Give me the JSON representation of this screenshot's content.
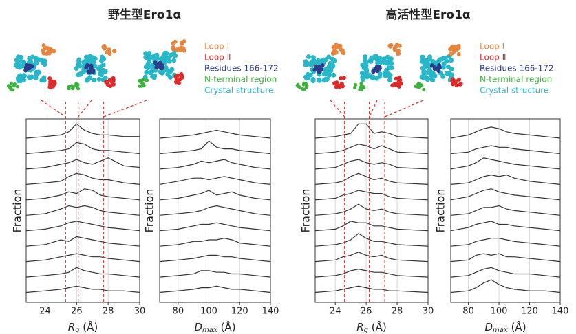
{
  "panels": [
    {
      "title": "野生型Ero1α",
      "legend": [
        {
          "name": "Loop I",
          "color": "#e8853d"
        },
        {
          "name": "Loop Ⅱ",
          "color": "#e02a2a"
        },
        {
          "name": "Residues 166-172",
          "color": "#2b3b8c"
        },
        {
          "name": "N-terminal region",
          "color": "#3cb33c"
        },
        {
          "name": "Crystal structure",
          "color": "#27b7c9"
        }
      ]
    },
    {
      "title": "高活性型Ero1α",
      "legend": [
        {
          "name": "Loop I",
          "color": "#e8853d"
        },
        {
          "name": "Loop Ⅱ",
          "color": "#e02a2a"
        },
        {
          "name": "Residues 166-172",
          "color": "#2b3b8c"
        },
        {
          "name": "N-terminal region",
          "color": "#3cb33c"
        },
        {
          "name": "Crystal structure",
          "color": "#27b7c9"
        }
      ]
    }
  ],
  "chart_data": [
    {
      "type": "ridgeline",
      "ylabel": "Fraction",
      "xlabel": {
        "symbol": "R",
        "subscript": "g",
        "unit": " (Å)"
      },
      "xlim": [
        22.8,
        30
      ],
      "xticks": [
        24,
        26,
        28,
        30
      ],
      "grid": true,
      "reference_lines": {
        "values": [
          25.3,
          26.1,
          27.7
        ],
        "color": "#e02a2a"
      },
      "x": [
        22.8,
        24,
        25,
        25.5,
        26,
        26.5,
        27,
        27.5,
        28,
        29,
        30
      ],
      "series": [
        {
          "color": "#333333",
          "values": [
            0,
            1,
            2,
            4,
            9,
            5,
            3,
            2,
            2,
            1,
            1
          ]
        },
        {
          "color": "#333333",
          "values": [
            0,
            1,
            2,
            3,
            7,
            6,
            3,
            2,
            2,
            1,
            0
          ]
        },
        {
          "color": "#333333",
          "values": [
            0,
            1,
            3,
            4,
            6,
            4,
            3,
            5,
            7,
            2,
            1
          ]
        },
        {
          "color": "#333333",
          "values": [
            0,
            1,
            2,
            5,
            7,
            6,
            4,
            3,
            3,
            1,
            0
          ]
        },
        {
          "color": "#333333",
          "values": [
            0,
            1,
            3,
            5,
            4,
            7,
            6,
            3,
            2,
            1,
            0
          ]
        },
        {
          "color": "#333333",
          "values": [
            0,
            1,
            4,
            6,
            5,
            6,
            5,
            3,
            2,
            1,
            0
          ]
        },
        {
          "color": "#333333",
          "values": [
            0,
            1,
            3,
            5,
            6,
            5,
            4,
            3,
            2,
            1,
            0
          ]
        },
        {
          "color": "#333333",
          "values": [
            0,
            1,
            4,
            3,
            6,
            5,
            4,
            3,
            2,
            1,
            0
          ]
        },
        {
          "color": "#333333",
          "values": [
            0,
            1,
            3,
            4,
            5,
            4,
            3,
            3,
            2,
            1,
            0
          ]
        },
        {
          "color": "#333333",
          "values": [
            0,
            1,
            2,
            3,
            6,
            4,
            3,
            2,
            2,
            1,
            0
          ]
        },
        {
          "color": "#333333",
          "values": [
            0,
            1,
            2,
            3,
            4,
            3,
            2,
            2,
            1,
            1,
            0
          ]
        }
      ]
    },
    {
      "type": "ridgeline",
      "ylabel": "Fraction",
      "xlabel": {
        "symbol": "D",
        "subscript": "max",
        "unit": " (Å)"
      },
      "xlim": [
        68,
        140
      ],
      "xticks": [
        80,
        100,
        120,
        140
      ],
      "grid": true,
      "x": [
        68,
        80,
        90,
        95,
        100,
        105,
        110,
        115,
        120,
        130,
        140
      ],
      "series": [
        {
          "color": "#333333",
          "values": [
            0,
            1,
            2,
            3,
            4,
            5,
            4,
            3,
            2,
            1,
            0
          ]
        },
        {
          "color": "#333333",
          "values": [
            0,
            1,
            2,
            3,
            8,
            4,
            3,
            3,
            2,
            1,
            0
          ]
        },
        {
          "color": "#333333",
          "values": [
            0,
            1,
            3,
            5,
            4,
            5,
            6,
            4,
            3,
            1,
            0
          ]
        },
        {
          "color": "#333333",
          "values": [
            0,
            2,
            4,
            4,
            3,
            4,
            5,
            4,
            3,
            1,
            0
          ]
        },
        {
          "color": "#333333",
          "values": [
            0,
            1,
            3,
            4,
            6,
            3,
            4,
            5,
            3,
            1,
            0
          ]
        },
        {
          "color": "#333333",
          "values": [
            0,
            1,
            2,
            3,
            5,
            6,
            5,
            4,
            3,
            1,
            0
          ]
        },
        {
          "color": "#333333",
          "values": [
            0,
            1,
            3,
            4,
            4,
            5,
            4,
            3,
            2,
            1,
            0
          ]
        },
        {
          "color": "#333333",
          "values": [
            0,
            1,
            3,
            3,
            4,
            4,
            5,
            4,
            2,
            1,
            0
          ]
        },
        {
          "color": "#333333",
          "values": [
            0,
            1,
            2,
            3,
            4,
            4,
            3,
            3,
            2,
            1,
            0
          ]
        },
        {
          "color": "#333333",
          "values": [
            0,
            1,
            2,
            4,
            4,
            3,
            3,
            2,
            2,
            1,
            0
          ]
        },
        {
          "color": "#333333",
          "values": [
            0,
            1,
            2,
            3,
            3,
            4,
            3,
            2,
            2,
            1,
            0
          ]
        }
      ]
    },
    {
      "type": "ridgeline",
      "ylabel": "Fraction",
      "xlabel": {
        "symbol": "R",
        "subscript": "g",
        "unit": " (Å)"
      },
      "xlim": [
        22.7,
        30
      ],
      "xticks": [
        24,
        26,
        28,
        30
      ],
      "grid": true,
      "reference_lines": {
        "values": [
          24.6,
          26.2,
          27.2
        ],
        "color": "#e02a2a"
      },
      "x": [
        22.7,
        24,
        24.5,
        25,
        25.5,
        26,
        26.5,
        27,
        27.5,
        28,
        30
      ],
      "series": [
        {
          "color": "#333333",
          "values": [
            0,
            1,
            2,
            3,
            9,
            9,
            3,
            4,
            3,
            1,
            0
          ]
        },
        {
          "color": "#333333",
          "values": [
            0,
            1,
            2,
            4,
            6,
            5,
            3,
            5,
            3,
            1,
            0
          ]
        },
        {
          "color": "#333333",
          "values": [
            0,
            1,
            3,
            5,
            6,
            4,
            3,
            4,
            3,
            1,
            0
          ]
        },
        {
          "color": "#333333",
          "values": [
            0,
            1,
            2,
            5,
            7,
            5,
            3,
            4,
            2,
            1,
            0
          ]
        },
        {
          "color": "#333333",
          "values": [
            0,
            1,
            3,
            4,
            6,
            5,
            4,
            4,
            2,
            1,
            0
          ]
        },
        {
          "color": "#333333",
          "values": [
            0,
            1,
            2,
            4,
            7,
            4,
            3,
            4,
            2,
            1,
            0
          ]
        },
        {
          "color": "#333333",
          "values": [
            0,
            1,
            3,
            6,
            5,
            5,
            3,
            3,
            2,
            1,
            0
          ]
        },
        {
          "color": "#333333",
          "values": [
            0,
            1,
            2,
            4,
            8,
            5,
            3,
            3,
            2,
            1,
            0
          ]
        },
        {
          "color": "#333333",
          "values": [
            0,
            1,
            3,
            4,
            6,
            4,
            3,
            4,
            2,
            1,
            0
          ]
        },
        {
          "color": "#333333",
          "values": [
            0,
            1,
            2,
            4,
            5,
            4,
            3,
            3,
            2,
            1,
            0
          ]
        },
        {
          "color": "#333333",
          "values": [
            0,
            1,
            2,
            3,
            4,
            3,
            2,
            2,
            1,
            1,
            0
          ]
        }
      ]
    },
    {
      "type": "ridgeline",
      "ylabel": "Fraction",
      "xlabel": {
        "symbol": "D",
        "subscript": "max",
        "unit": " (Å)"
      },
      "xlim": [
        68.5,
        140
      ],
      "xticks": [
        80,
        100,
        120,
        140
      ],
      "grid": true,
      "x": [
        68.5,
        80,
        85,
        90,
        95,
        100,
        105,
        110,
        120,
        130,
        140
      ],
      "series": [
        {
          "color": "#333333",
          "values": [
            0,
            2,
            4,
            6,
            7,
            6,
            4,
            3,
            2,
            1,
            0
          ]
        },
        {
          "color": "#333333",
          "values": [
            0,
            1,
            3,
            4,
            5,
            4,
            4,
            3,
            2,
            1,
            0
          ]
        },
        {
          "color": "#333333",
          "values": [
            0,
            2,
            4,
            7,
            6,
            5,
            4,
            3,
            2,
            1,
            0
          ]
        },
        {
          "color": "#333333",
          "values": [
            0,
            1,
            3,
            5,
            6,
            5,
            6,
            4,
            2,
            1,
            0
          ]
        },
        {
          "color": "#333333",
          "values": [
            0,
            2,
            4,
            6,
            7,
            5,
            4,
            3,
            2,
            1,
            0
          ]
        },
        {
          "color": "#333333",
          "values": [
            0,
            1,
            3,
            5,
            5,
            6,
            4,
            3,
            2,
            1,
            0
          ]
        },
        {
          "color": "#333333",
          "values": [
            0,
            2,
            4,
            5,
            6,
            4,
            4,
            3,
            2,
            1,
            0
          ]
        },
        {
          "color": "#333333",
          "values": [
            0,
            1,
            3,
            4,
            5,
            5,
            4,
            3,
            2,
            1,
            0
          ]
        },
        {
          "color": "#333333",
          "values": [
            0,
            1,
            4,
            5,
            4,
            5,
            3,
            3,
            2,
            1,
            0
          ]
        },
        {
          "color": "#333333",
          "values": [
            0,
            1,
            3,
            5,
            6,
            4,
            3,
            2,
            2,
            1,
            0
          ]
        },
        {
          "color": "#333333",
          "values": [
            0,
            1,
            3,
            6,
            8,
            5,
            3,
            2,
            1,
            1,
            0
          ]
        }
      ]
    }
  ]
}
